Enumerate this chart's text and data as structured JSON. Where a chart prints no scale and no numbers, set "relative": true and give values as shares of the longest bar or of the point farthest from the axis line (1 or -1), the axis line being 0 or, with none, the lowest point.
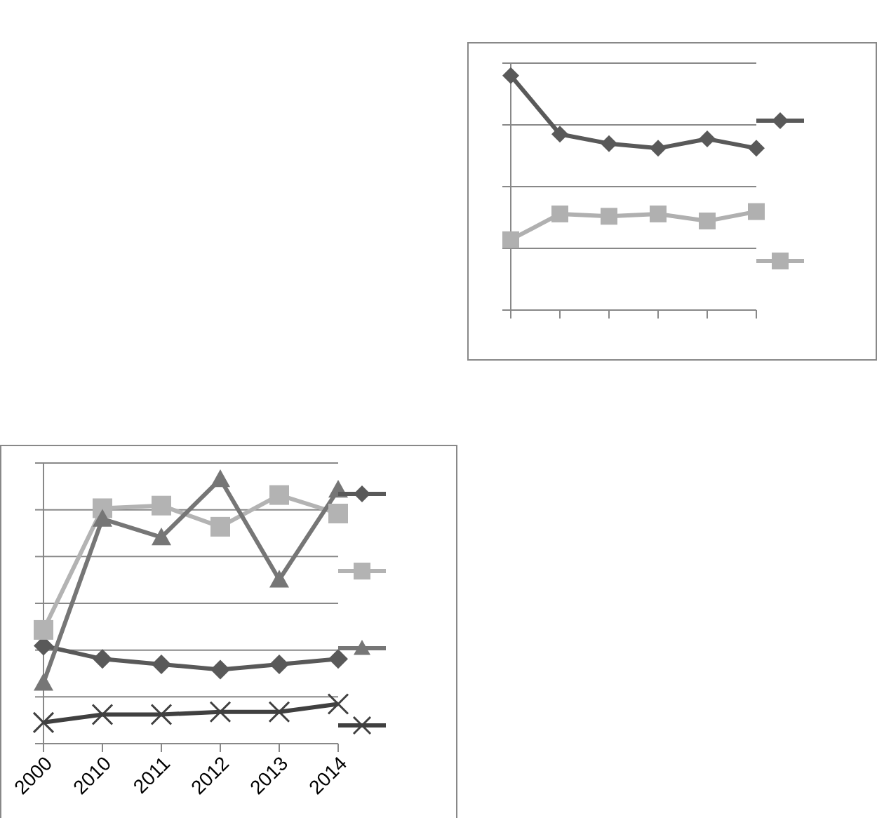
{
  "chart_data": [
    {
      "type": "line",
      "relative": true,
      "categories": [
        null,
        null,
        null,
        null,
        null,
        null
      ],
      "grid": "y",
      "series": [
        {
          "color": "#595959",
          "marker": "diamond",
          "values": [
            1,
            0.75,
            0.71,
            0.69,
            0.73,
            0.69
          ]
        },
        {
          "color": "#b0b0b0",
          "marker": "square",
          "values": [
            0.3,
            0.41,
            0.4,
            0.41,
            0.38,
            0.42
          ]
        }
      ]
    },
    {
      "type": "line",
      "relative": true,
      "categories": [
        "2000",
        "2010",
        "2011",
        "2012",
        "2013",
        "2014"
      ],
      "grid": "y",
      "series": [
        {
          "color": "#595959",
          "marker": "diamond",
          "values": [
            0.37,
            0.32,
            0.3,
            0.28,
            0.3,
            0.32
          ]
        },
        {
          "color": "#b3b3b3",
          "marker": "square",
          "values": [
            0.43,
            0.89,
            0.9,
            0.82,
            0.94,
            0.87
          ]
        },
        {
          "color": "#767676",
          "marker": "triangle",
          "values": [
            0.23,
            0.85,
            0.78,
            1,
            0.62,
            0.96
          ]
        },
        {
          "color": "#404040",
          "marker": "cross",
          "values": [
            0.08,
            0.11,
            0.11,
            0.12,
            0.12,
            0.15
          ]
        }
      ]
    }
  ]
}
